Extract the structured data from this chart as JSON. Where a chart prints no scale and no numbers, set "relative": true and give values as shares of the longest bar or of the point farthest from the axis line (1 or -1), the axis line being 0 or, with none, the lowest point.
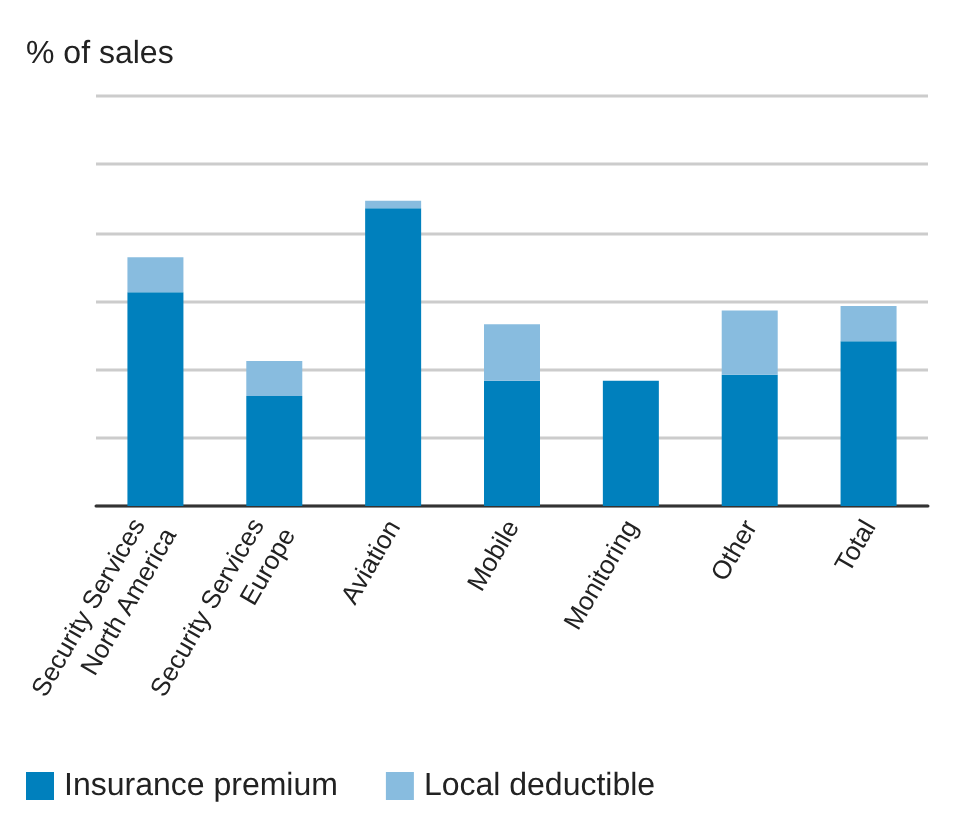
{
  "chart_data": {
    "type": "bar",
    "ylabel": "% of sales",
    "relative": true,
    "stacked": true,
    "grid": true,
    "legend": "bottom left",
    "categories": [
      "Security Services North America",
      "Security Services Europe",
      "Aviation",
      "Mobile",
      "Monitoring",
      "Other",
      "Total"
    ],
    "series": [
      {
        "name": "Insurance premium",
        "color": "#0080bd",
        "values": [
          0.7,
          0.36,
          0.975,
          0.41,
          0.41,
          0.43,
          0.54
        ]
      },
      {
        "name": "Local deductible",
        "color": "#88bcdf",
        "values": [
          0.115,
          0.115,
          0.025,
          0.185,
          0,
          0.21,
          0.115
        ]
      }
    ]
  }
}
